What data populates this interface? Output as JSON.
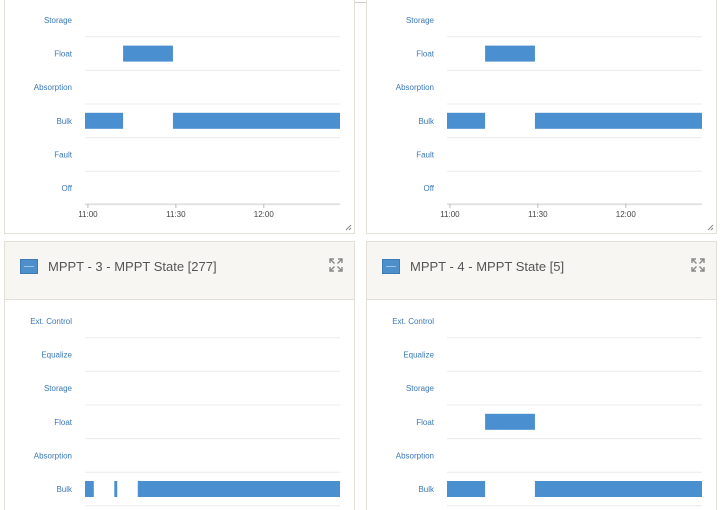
{
  "colors": {
    "bar": "#4a8fcf",
    "label": "#3a78b6",
    "header_bg": "#f8f6f2"
  },
  "top_left_chart": {
    "state_labels": [
      "Storage",
      "Float",
      "Absorption",
      "Bulk",
      "Fault",
      "Off"
    ],
    "x_ticks": [
      "11:00",
      "11:30",
      "12:00"
    ]
  },
  "top_right_chart": {
    "state_labels": [
      "Storage",
      "Float",
      "Absorption",
      "Bulk",
      "Fault",
      "Off"
    ],
    "x_ticks": [
      "11:00",
      "11:30",
      "12:00"
    ]
  },
  "widget_3": {
    "title": "MPPT - 3 - MPPT State [277]",
    "icon": "chart-widget-icon",
    "state_labels": [
      "Ext. Control",
      "Equalize",
      "Storage",
      "Float",
      "Absorption",
      "Bulk"
    ]
  },
  "widget_4": {
    "title": "MPPT - 4 - MPPT State [5]",
    "icon": "chart-widget-icon",
    "state_labels": [
      "Ext. Control",
      "Equalize",
      "Storage",
      "Float",
      "Absorption",
      "Bulk"
    ]
  },
  "chart_data": [
    {
      "type": "bar",
      "title": "",
      "x_ticks": [
        "11:00",
        "11:30",
        "12:00"
      ],
      "x_range": [
        "10:59",
        "12:26"
      ],
      "segments": [
        {
          "state": "Bulk",
          "start": "10:59",
          "end": "11:12"
        },
        {
          "state": "Float",
          "start": "11:12",
          "end": "11:29"
        },
        {
          "state": "Bulk",
          "start": "11:29",
          "end": "12:26"
        }
      ]
    },
    {
      "type": "bar",
      "title": "",
      "x_ticks": [
        "11:00",
        "11:30",
        "12:00"
      ],
      "x_range": [
        "10:59",
        "12:26"
      ],
      "segments": [
        {
          "state": "Bulk",
          "start": "10:59",
          "end": "11:12"
        },
        {
          "state": "Float",
          "start": "11:12",
          "end": "11:29"
        },
        {
          "state": "Bulk",
          "start": "11:29",
          "end": "12:26"
        }
      ]
    },
    {
      "type": "bar",
      "title": "MPPT - 3 - MPPT State [277]",
      "x_range": [
        "10:59",
        "12:26"
      ],
      "segments": [
        {
          "state": "Bulk",
          "start": "10:59",
          "end": "11:02"
        },
        {
          "state": "Bulk",
          "start": "11:09",
          "end": "11:10"
        },
        {
          "state": "Bulk",
          "start": "11:17",
          "end": "12:26"
        }
      ]
    },
    {
      "type": "bar",
      "title": "MPPT - 4 - MPPT State [5]",
      "x_range": [
        "10:59",
        "12:26"
      ],
      "segments": [
        {
          "state": "Bulk",
          "start": "10:59",
          "end": "11:12"
        },
        {
          "state": "Float",
          "start": "11:12",
          "end": "11:29"
        },
        {
          "state": "Bulk",
          "start": "11:29",
          "end": "12:26"
        }
      ]
    }
  ]
}
